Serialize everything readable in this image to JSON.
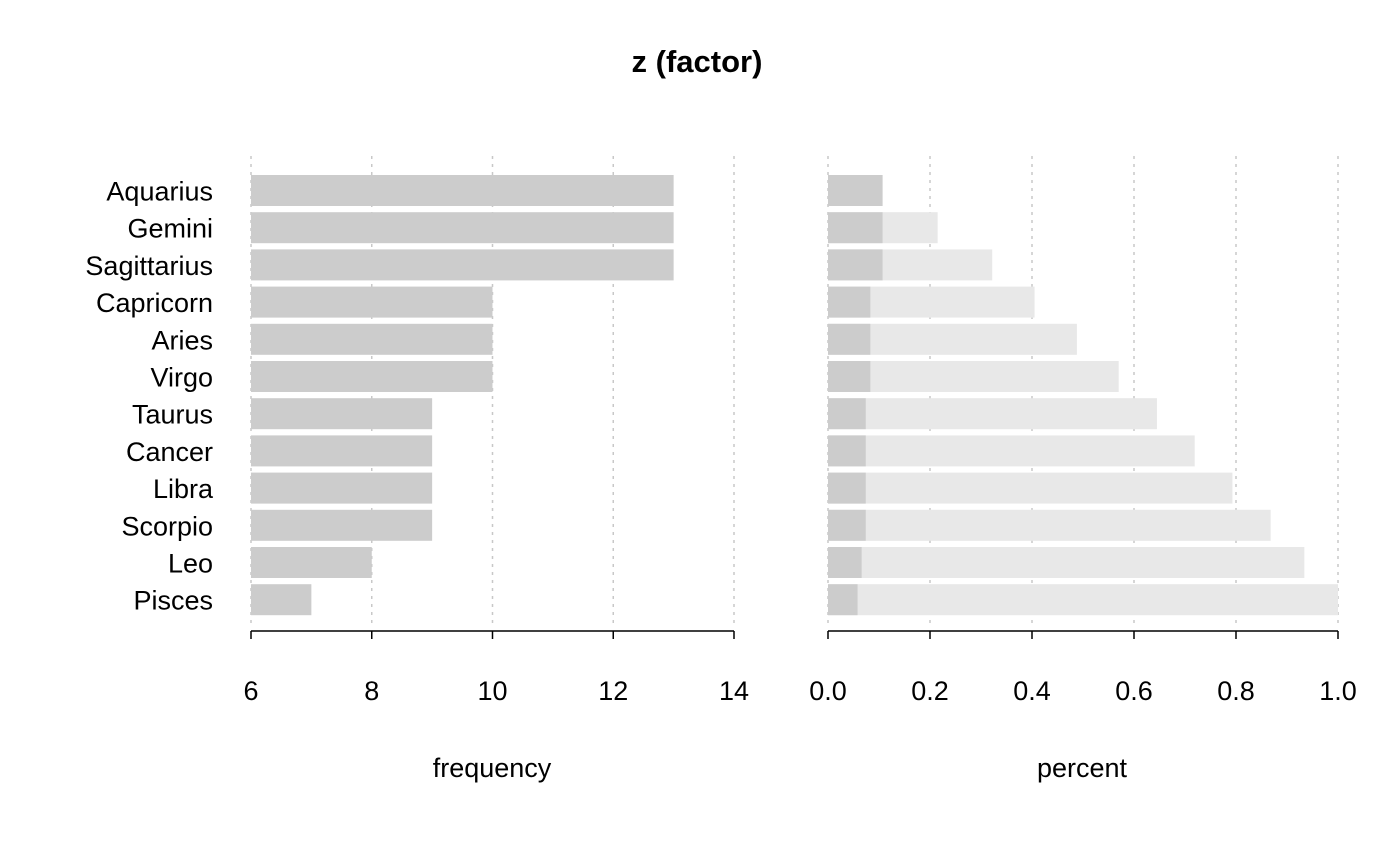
{
  "chart_data": [
    {
      "type": "bar",
      "orientation": "horizontal",
      "title": "z (factor)",
      "xlabel": "frequency",
      "categories": [
        "Aquarius",
        "Gemini",
        "Sagittarius",
        "Capricorn",
        "Aries",
        "Virgo",
        "Taurus",
        "Cancer",
        "Libra",
        "Scorpio",
        "Leo",
        "Pisces"
      ],
      "values": [
        13,
        13,
        13,
        10,
        10,
        10,
        9,
        9,
        9,
        9,
        8,
        7
      ],
      "xlim": [
        6,
        14
      ],
      "xticks": [
        "6",
        "8",
        "10",
        "12",
        "14"
      ],
      "grid": true,
      "bar_color": "#cccccc"
    },
    {
      "type": "bar",
      "orientation": "horizontal",
      "xlabel": "percent",
      "categories": [
        "Aquarius",
        "Gemini",
        "Sagittarius",
        "Capricorn",
        "Aries",
        "Virgo",
        "Taurus",
        "Cancer",
        "Libra",
        "Scorpio",
        "Leo",
        "Pisces"
      ],
      "series": [
        {
          "role": "proportion",
          "values": [
            0.107,
            0.107,
            0.107,
            0.083,
            0.083,
            0.083,
            0.074,
            0.074,
            0.074,
            0.074,
            0.066,
            0.058
          ]
        },
        {
          "role": "cumulative",
          "values": [
            0.107,
            0.215,
            0.322,
            0.405,
            0.488,
            0.57,
            0.645,
            0.719,
            0.793,
            0.868,
            0.934,
            1.0
          ]
        }
      ],
      "xlim": [
        0,
        1
      ],
      "xticks": [
        "0.0",
        "0.2",
        "0.4",
        "0.6",
        "0.8",
        "1.0"
      ],
      "grid": true,
      "bar_color": "#cccccc",
      "cumulative_color": "#e8e8e8"
    }
  ]
}
